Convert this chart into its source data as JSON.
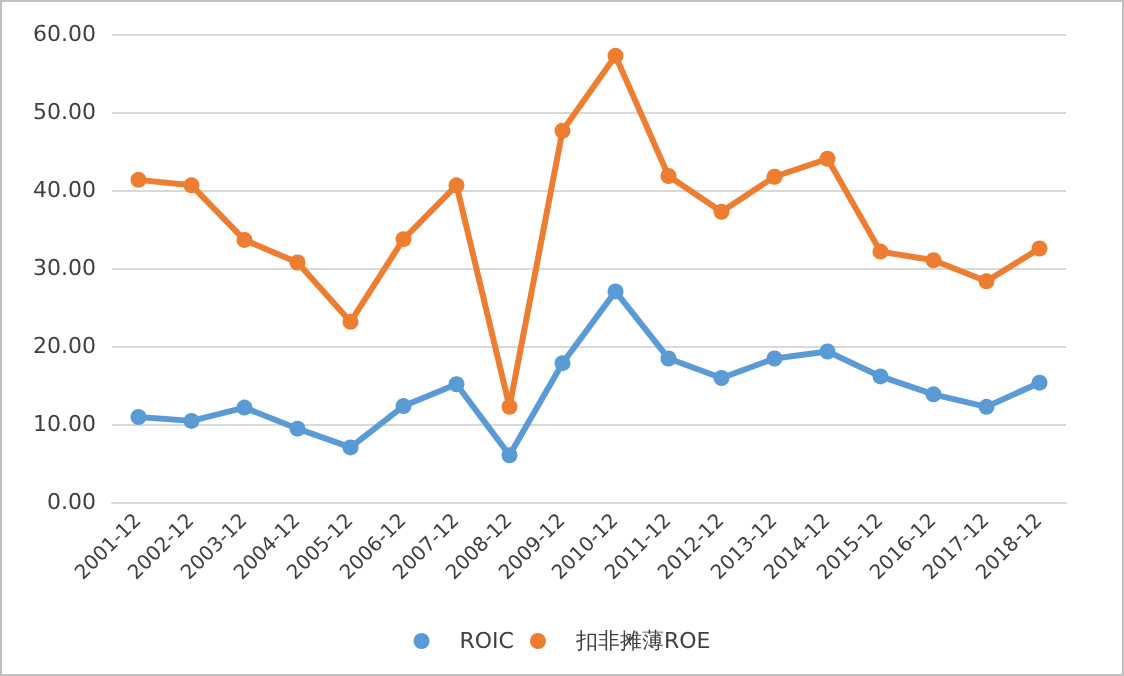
{
  "chart_data": {
    "type": "line",
    "categories": [
      "2001-12",
      "2002-12",
      "2003-12",
      "2004-12",
      "2005-12",
      "2006-12",
      "2007-12",
      "2008-12",
      "2009-12",
      "2010-12",
      "2011-12",
      "2012-12",
      "2013-12",
      "2014-12",
      "2015-12",
      "2016-12",
      "2017-12",
      "2018-12"
    ],
    "series": [
      {
        "name": "ROIC",
        "color": "#5b9bd5",
        "values": [
          10.9,
          10.4,
          12.1,
          9.4,
          7.0,
          12.3,
          15.1,
          6.0,
          17.8,
          27.0,
          18.4,
          15.9,
          18.4,
          19.3,
          16.1,
          13.8,
          12.2,
          15.3
        ]
      },
      {
        "name": "扣非摊薄ROE",
        "color": "#ed7d31",
        "values": [
          41.3,
          40.6,
          33.6,
          30.7,
          23.1,
          33.7,
          40.6,
          12.2,
          47.6,
          57.2,
          41.8,
          37.2,
          41.7,
          44.0,
          32.1,
          31.0,
          28.3,
          32.5
        ]
      }
    ],
    "ylim": [
      0,
      60
    ],
    "yticks": [
      {
        "value": 0,
        "label": "0.00"
      },
      {
        "value": 10,
        "label": "10.00"
      },
      {
        "value": 20,
        "label": "20.00"
      },
      {
        "value": 30,
        "label": "30.00"
      },
      {
        "value": 40,
        "label": "40.00"
      },
      {
        "value": 50,
        "label": "50.00"
      },
      {
        "value": 60,
        "label": "60.00"
      }
    ],
    "grid": "y",
    "legend": "bottom",
    "marker": "circle",
    "line_style": "solid"
  }
}
